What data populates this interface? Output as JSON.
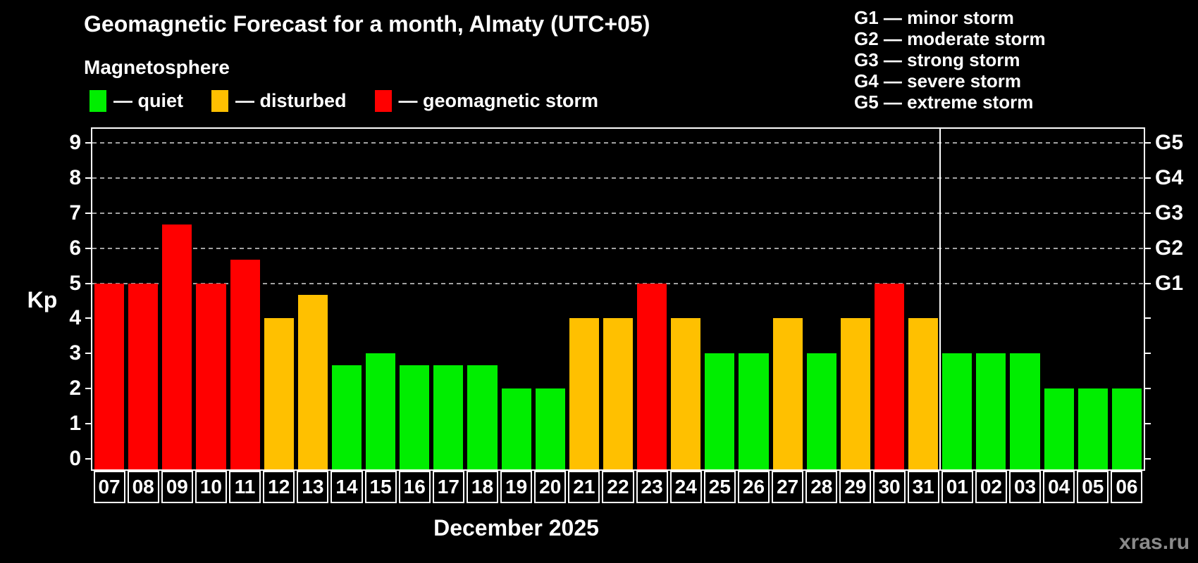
{
  "header": {
    "title": "Geomagnetic Forecast for a month, Almaty (UTC+05)",
    "subtitle": "Magnetosphere",
    "legend": [
      {
        "status": "quiet",
        "label": "— quiet",
        "color": "#00ee00"
      },
      {
        "status": "disturbed",
        "label": "— disturbed",
        "color": "#ffc000"
      },
      {
        "status": "storm",
        "label": "— geomagnetic storm",
        "color": "#ff0000"
      }
    ],
    "g_scale_legend": [
      "G1 — minor storm",
      "G2 — moderate storm",
      "G3 — strong storm",
      "G4 — severe storm",
      "G5 — extreme storm"
    ]
  },
  "chart_data": {
    "type": "bar",
    "title": "Geomagnetic Forecast for a month, Almaty (UTC+05)",
    "xlabel": "December 2025",
    "ylabel": "Kp",
    "ylim": [
      -0.3,
      9.4
    ],
    "yticks": [
      0,
      1,
      2,
      3,
      4,
      5,
      6,
      7,
      8,
      9
    ],
    "grid": "dashed-horizontal-at-storm-levels",
    "gridlines_at": [
      5,
      6,
      7,
      8,
      9
    ],
    "right_axis_labels": [
      {
        "kp": 5,
        "label": "G1"
      },
      {
        "kp": 6,
        "label": "G2"
      },
      {
        "kp": 7,
        "label": "G3"
      },
      {
        "kp": 8,
        "label": "G4"
      },
      {
        "kp": 9,
        "label": "G5"
      }
    ],
    "month_divider_index": 25,
    "status_colors": {
      "quiet": "#00ee00",
      "disturbed": "#ffc000",
      "storm": "#ff0000"
    },
    "bars": [
      {
        "day": "07",
        "kp": 5,
        "status": "storm"
      },
      {
        "day": "08",
        "kp": 5,
        "status": "storm"
      },
      {
        "day": "09",
        "kp": 6.67,
        "status": "storm"
      },
      {
        "day": "10",
        "kp": 5,
        "status": "storm"
      },
      {
        "day": "11",
        "kp": 5.67,
        "status": "storm"
      },
      {
        "day": "12",
        "kp": 4,
        "status": "disturbed"
      },
      {
        "day": "13",
        "kp": 4.67,
        "status": "disturbed"
      },
      {
        "day": "14",
        "kp": 2.67,
        "status": "quiet"
      },
      {
        "day": "15",
        "kp": 3,
        "status": "quiet"
      },
      {
        "day": "16",
        "kp": 2.67,
        "status": "quiet"
      },
      {
        "day": "17",
        "kp": 2.67,
        "status": "quiet"
      },
      {
        "day": "18",
        "kp": 2.67,
        "status": "quiet"
      },
      {
        "day": "19",
        "kp": 2,
        "status": "quiet"
      },
      {
        "day": "20",
        "kp": 2,
        "status": "quiet"
      },
      {
        "day": "21",
        "kp": 4,
        "status": "disturbed"
      },
      {
        "day": "22",
        "kp": 4,
        "status": "disturbed"
      },
      {
        "day": "23",
        "kp": 5,
        "status": "storm"
      },
      {
        "day": "24",
        "kp": 4,
        "status": "disturbed"
      },
      {
        "day": "25",
        "kp": 3,
        "status": "quiet"
      },
      {
        "day": "26",
        "kp": 3,
        "status": "quiet"
      },
      {
        "day": "27",
        "kp": 4,
        "status": "disturbed"
      },
      {
        "day": "28",
        "kp": 3,
        "status": "quiet"
      },
      {
        "day": "29",
        "kp": 4,
        "status": "disturbed"
      },
      {
        "day": "30",
        "kp": 5,
        "status": "storm"
      },
      {
        "day": "31",
        "kp": 4,
        "status": "disturbed"
      },
      {
        "day": "01",
        "kp": 3,
        "status": "quiet"
      },
      {
        "day": "02",
        "kp": 3,
        "status": "quiet"
      },
      {
        "day": "03",
        "kp": 3,
        "status": "quiet"
      },
      {
        "day": "04",
        "kp": 2,
        "status": "quiet"
      },
      {
        "day": "05",
        "kp": 2,
        "status": "quiet"
      },
      {
        "day": "06",
        "kp": 2,
        "status": "quiet"
      }
    ]
  },
  "footer": {
    "month_label": "December 2025",
    "watermark": "xras.ru"
  }
}
